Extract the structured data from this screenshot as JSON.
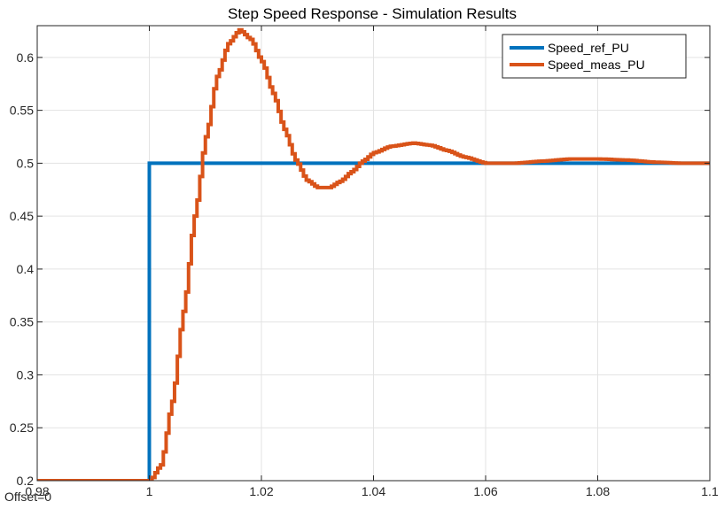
{
  "chart_data": {
    "type": "line",
    "title": "Step Speed Response - Simulation Results",
    "xlabel": "",
    "ylabel": "",
    "xlim": [
      0.98,
      1.1
    ],
    "ylim": [
      0.2,
      0.63
    ],
    "x_ticks": [
      0.98,
      1,
      1.02,
      1.04,
      1.06,
      1.08,
      1.1
    ],
    "x_tick_labels": [
      "0.98",
      "1",
      "1.02",
      "1.04",
      "1.06",
      "1.08",
      "1.1"
    ],
    "y_ticks": [
      0.2,
      0.25,
      0.3,
      0.35,
      0.4,
      0.45,
      0.5,
      0.55,
      0.6
    ],
    "y_tick_labels": [
      "0.2",
      "0.25",
      "0.3",
      "0.35",
      "0.4",
      "0.45",
      "0.5",
      "0.55",
      "0.6"
    ],
    "grid": true,
    "legend_position": "top-right",
    "offset_label": "Offset=0",
    "series": [
      {
        "name": "Speed_ref_PU",
        "color": "#0072BD",
        "step": true,
        "x": [
          0.98,
          1.0,
          1.0,
          1.1
        ],
        "y": [
          0.2,
          0.2,
          0.5,
          0.5
        ]
      },
      {
        "name": "Speed_meas_PU",
        "color": "#D95319",
        "step": true,
        "x": [
          0.98,
          1.0,
          1.002,
          1.004,
          1.006,
          1.008,
          1.01,
          1.012,
          1.014,
          1.016,
          1.018,
          1.02,
          1.022,
          1.024,
          1.026,
          1.028,
          1.03,
          1.032,
          1.034,
          1.036,
          1.038,
          1.04,
          1.043,
          1.047,
          1.05,
          1.053,
          1.056,
          1.06,
          1.065,
          1.07,
          1.075,
          1.08,
          1.085,
          1.09,
          1.095,
          1.1
        ],
        "y": [
          0.2,
          0.2,
          0.215,
          0.275,
          0.36,
          0.45,
          0.525,
          0.582,
          0.613,
          0.626,
          0.617,
          0.596,
          0.566,
          0.532,
          0.503,
          0.484,
          0.477,
          0.477,
          0.483,
          0.492,
          0.502,
          0.51,
          0.516,
          0.519,
          0.517,
          0.512,
          0.506,
          0.5,
          0.5,
          0.502,
          0.504,
          0.504,
          0.503,
          0.501,
          0.5,
          0.5
        ]
      }
    ]
  }
}
